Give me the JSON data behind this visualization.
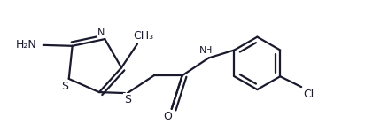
{
  "bg_color": "#ffffff",
  "line_color": "#1a1a2e",
  "line_width": 1.6,
  "font_size": 9,
  "figsize": [
    4.12,
    1.58
  ],
  "dpi": 100,
  "xlim": [
    0,
    4.12
  ],
  "ylim": [
    0,
    1.58
  ]
}
